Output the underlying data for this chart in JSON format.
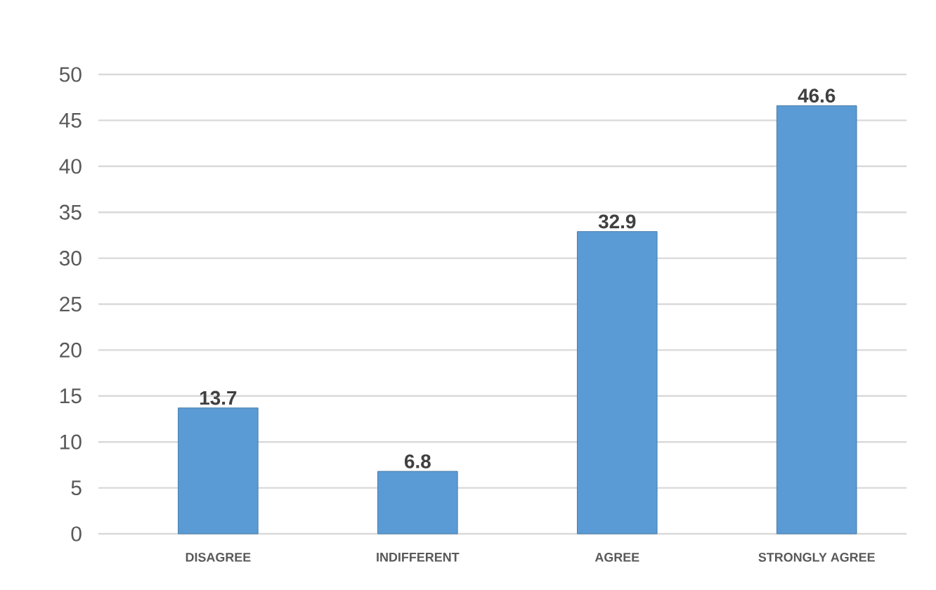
{
  "chart_data": {
    "type": "bar",
    "categories": [
      "DISAGREE",
      "INDIFFERENT",
      "AGREE",
      "STRONGLY AGREE"
    ],
    "values": [
      13.7,
      6.8,
      32.9,
      46.6
    ],
    "color": "#5b9bd5",
    "ylim": [
      0,
      50
    ],
    "yticks": [
      0,
      5,
      10,
      15,
      20,
      25,
      30,
      35,
      40,
      45,
      50
    ],
    "grid": "y",
    "data_labels": true
  }
}
